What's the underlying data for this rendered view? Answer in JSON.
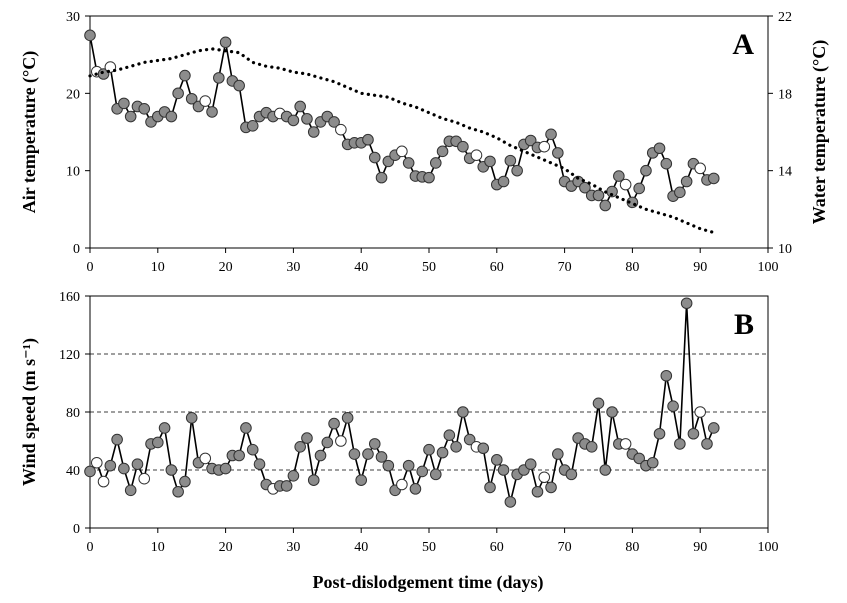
{
  "figure": {
    "xlabel": "Post-dislodgement time (days)"
  },
  "colors": {
    "filled_marker": "#8c8c8c",
    "open_marker": "#ffffff",
    "line": "#000000",
    "grid": "#000000"
  },
  "chart_data": [
    {
      "type": "line",
      "panel_label": "A",
      "xlim": [
        0,
        100
      ],
      "xticks": [
        "0",
        "10",
        "20",
        "30",
        "40",
        "50",
        "60",
        "70",
        "80",
        "90",
        "100"
      ],
      "ylabel": "Air temperature (°C)",
      "ylim": [
        0,
        30
      ],
      "yticks": [
        "0",
        "10",
        "20",
        "30"
      ],
      "y2label": "Water temperature (°C)",
      "y2lim": [
        10,
        22
      ],
      "y2ticks": [
        "10",
        "14",
        "18",
        "22"
      ],
      "grid": false,
      "series": [
        {
          "axis": "left",
          "style": "line-markers",
          "x": [
            0,
            1,
            2,
            3,
            4,
            5,
            6,
            7,
            8,
            9,
            10,
            11,
            12,
            13,
            14,
            15,
            16,
            17,
            18,
            19,
            20,
            21,
            22,
            23,
            24,
            25,
            26,
            27,
            28,
            29,
            30,
            31,
            32,
            33,
            34,
            35,
            36,
            37,
            38,
            39,
            40,
            41,
            42,
            43,
            44,
            45,
            46,
            47,
            48,
            49,
            50,
            51,
            52,
            53,
            54,
            55,
            56,
            57,
            58,
            59,
            60,
            61,
            62,
            63,
            64,
            65,
            66,
            67,
            68,
            69,
            70,
            71,
            72,
            73,
            74,
            75,
            76,
            77,
            78,
            79,
            80,
            81,
            82,
            83,
            84,
            85,
            86,
            87,
            88,
            89,
            90,
            91,
            92
          ],
          "y": [
            27.5,
            22.8,
            22.5,
            23.4,
            18.0,
            18.7,
            17.0,
            18.3,
            18.0,
            16.3,
            17.0,
            17.6,
            17.0,
            20.0,
            22.3,
            19.3,
            18.3,
            19.0,
            17.6,
            22.0,
            26.6,
            21.6,
            21.0,
            15.6,
            15.8,
            17.0,
            17.5,
            17.0,
            17.4,
            17.0,
            16.5,
            18.3,
            16.7,
            15.0,
            16.3,
            17.0,
            16.3,
            15.3,
            13.4,
            13.6,
            13.6,
            14.0,
            11.7,
            9.1,
            11.2,
            12.0,
            12.5,
            11.0,
            9.3,
            9.2,
            9.1,
            11.0,
            12.5,
            13.8,
            13.8,
            13.1,
            11.6,
            12.0,
            10.5,
            11.2,
            8.2,
            8.6,
            11.3,
            10.0,
            13.4,
            13.9,
            13.0,
            13.1,
            14.7,
            12.3,
            8.6,
            8.0,
            8.6,
            7.8,
            6.8,
            6.8,
            5.5,
            7.3,
            9.3,
            8.2,
            5.9,
            7.7,
            10.0,
            12.3,
            12.9,
            10.9,
            6.7,
            7.2,
            8.6,
            10.9,
            10.3,
            8.8,
            9.0
          ],
          "open_indices": [
            1,
            3,
            17,
            28,
            37,
            46,
            57,
            67,
            79,
            90
          ]
        },
        {
          "axis": "right",
          "style": "dotted",
          "x": [
            0,
            2,
            4,
            6,
            8,
            10,
            12,
            14,
            16,
            18,
            20,
            22,
            24,
            26,
            28,
            30,
            32,
            34,
            36,
            38,
            40,
            42,
            44,
            46,
            48,
            50,
            52,
            54,
            56,
            58,
            60,
            62,
            64,
            66,
            68,
            70,
            72,
            74,
            76,
            78,
            80,
            82,
            84,
            86,
            88,
            90,
            92
          ],
          "y": [
            18.9,
            19.1,
            19.2,
            19.4,
            19.6,
            19.7,
            19.8,
            20.0,
            20.2,
            20.3,
            20.2,
            20.1,
            19.6,
            19.4,
            19.3,
            19.1,
            19.0,
            18.8,
            18.6,
            18.3,
            18.0,
            17.9,
            17.8,
            17.5,
            17.3,
            17.0,
            16.7,
            16.5,
            16.2,
            16.0,
            15.7,
            15.3,
            15.0,
            14.7,
            14.4,
            14.1,
            13.6,
            13.3,
            12.9,
            12.6,
            12.3,
            12.0,
            11.8,
            11.6,
            11.3,
            11.0,
            10.8
          ]
        }
      ]
    },
    {
      "type": "line",
      "panel_label": "B",
      "xlim": [
        0,
        100
      ],
      "xticks": [
        "0",
        "10",
        "20",
        "30",
        "40",
        "50",
        "60",
        "70",
        "80",
        "90",
        "100"
      ],
      "ylabel": "Wind speed (m s⁻¹)",
      "ylim": [
        0,
        160
      ],
      "yticks": [
        "0",
        "40",
        "80",
        "120",
        "160"
      ],
      "grid": true,
      "gridlines": [
        40,
        80,
        120
      ],
      "series": [
        {
          "style": "line-markers",
          "x": [
            0,
            1,
            2,
            3,
            4,
            5,
            6,
            7,
            8,
            9,
            10,
            11,
            12,
            13,
            14,
            15,
            16,
            17,
            18,
            19,
            20,
            21,
            22,
            23,
            24,
            25,
            26,
            27,
            28,
            29,
            30,
            31,
            32,
            33,
            34,
            35,
            36,
            37,
            38,
            39,
            40,
            41,
            42,
            43,
            44,
            45,
            46,
            47,
            48,
            49,
            50,
            51,
            52,
            53,
            54,
            55,
            56,
            57,
            58,
            59,
            60,
            61,
            62,
            63,
            64,
            65,
            66,
            67,
            68,
            69,
            70,
            71,
            72,
            73,
            74,
            75,
            76,
            77,
            78,
            79,
            80,
            81,
            82,
            83,
            84,
            85,
            86,
            87,
            88,
            89,
            90,
            91,
            92
          ],
          "y": [
            39,
            45,
            32,
            43,
            61,
            41,
            26,
            44,
            34,
            58,
            59,
            69,
            40,
            25,
            32,
            76,
            45,
            48,
            41,
            40,
            41,
            50,
            50,
            69,
            54,
            44,
            30,
            27,
            29,
            29,
            36,
            56,
            62,
            33,
            50,
            59,
            72,
            60,
            76,
            51,
            33,
            51,
            58,
            49,
            43,
            26,
            30,
            43,
            27,
            39,
            54,
            37,
            52,
            64,
            56,
            80,
            61,
            56,
            55,
            28,
            47,
            40,
            18,
            37,
            40,
            44,
            25,
            35,
            28,
            51,
            40,
            37,
            62,
            58,
            56,
            86,
            40,
            80,
            58,
            58,
            51,
            48,
            43,
            45,
            65,
            105,
            84,
            58,
            155,
            65,
            80,
            58,
            69
          ],
          "open_indices": [
            1,
            2,
            8,
            17,
            27,
            37,
            46,
            57,
            67,
            79,
            90
          ]
        }
      ]
    }
  ]
}
